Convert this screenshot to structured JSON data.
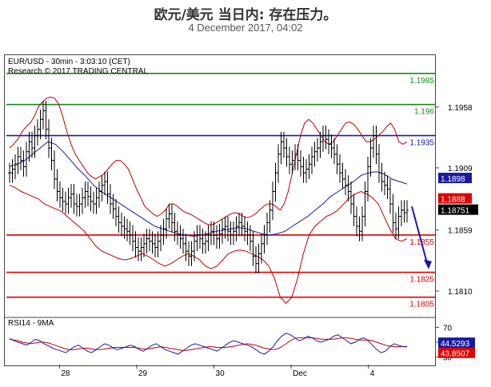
{
  "header": {
    "title": "欧元/美元 当日内: 存在压力。",
    "subtitle": "4 December 2017, 04:02"
  },
  "chart_info": {
    "symbol_line": "EUR/USD - 30min - 3:03:10 (CET)",
    "research_line": "Research © 2017 TRADING CENTRAL"
  },
  "chart_data": {
    "type": "line",
    "subtype": "ohlc-bars",
    "title": "",
    "y_range": [
      1.179,
      1.1999
    ],
    "y_ticks": [
      "1.1958",
      "1.1909",
      "1.1859",
      "1.1810"
    ],
    "x_ticks": [
      "28",
      "29",
      "30",
      "Dec",
      "4"
    ],
    "x_tick_positions_index": [
      31,
      79,
      127,
      175,
      223
    ],
    "close_series": [
      1.1905,
      1.1908,
      1.1912,
      1.1918,
      1.1915,
      1.191,
      1.1922,
      1.193,
      1.1925,
      1.1935,
      1.194,
      1.1948,
      1.1955,
      1.194,
      1.1925,
      1.1915,
      1.19,
      1.189,
      1.1885,
      1.1882,
      1.188,
      1.1885,
      1.1888,
      1.188,
      1.1878,
      1.188,
      1.1885,
      1.189,
      1.1886,
      1.1882,
      1.188,
      1.1885,
      1.189,
      1.1895,
      1.1898,
      1.1888,
      1.188,
      1.1876,
      1.187,
      1.1865,
      1.1862,
      1.186,
      1.1858,
      1.1855,
      1.185,
      1.1845,
      1.1842,
      1.1845,
      1.1848,
      1.1852,
      1.185,
      1.1848,
      1.1845,
      1.185,
      1.1855,
      1.186,
      1.1868,
      1.1872,
      1.1865,
      1.1858,
      1.1855,
      1.1852,
      1.1848,
      1.1842,
      1.1838,
      1.1842,
      1.185,
      1.1855,
      1.1852,
      1.1848,
      1.185,
      1.1855,
      1.1858,
      1.1855,
      1.1852,
      1.1856,
      1.186,
      1.1862,
      1.1858,
      1.1855,
      1.1858,
      1.1862,
      1.1865,
      1.1862,
      1.1858,
      1.1855,
      1.185,
      1.1838,
      1.1832,
      1.184,
      1.1848,
      1.1855,
      1.1865,
      1.1875,
      1.189,
      1.1905,
      1.192,
      1.193,
      1.1925,
      1.1918,
      1.1912,
      1.1915,
      1.192,
      1.1915,
      1.191,
      1.1905,
      1.1908,
      1.1912,
      1.1918,
      1.1922,
      1.1925,
      1.193,
      1.1935,
      1.1932,
      1.1928,
      1.1925,
      1.192,
      1.1912,
      1.1905,
      1.19,
      1.1895,
      1.189,
      1.188,
      1.187,
      1.1862,
      1.1858,
      1.187,
      1.189,
      1.191,
      1.1925,
      1.1935,
      1.192,
      1.1905,
      1.1898,
      1.1895,
      1.1892,
      1.188,
      1.1865,
      1.186,
      1.187,
      1.1875,
      1.1873,
      1.1875
    ],
    "bollinger_upper": [
      1.1925,
      1.1928,
      1.1932,
      1.1938,
      1.1942,
      1.1945,
      1.195,
      1.1958,
      1.1962,
      1.1965,
      1.1966,
      1.1965,
      1.196,
      1.195,
      1.1938,
      1.1928,
      1.192,
      1.1915,
      1.191,
      1.1905,
      1.1902,
      1.19,
      1.1902,
      1.1904,
      1.1908,
      1.1912,
      1.1915,
      1.1915,
      1.1912,
      1.1908,
      1.19,
      1.1892,
      1.1885,
      1.1878,
      1.1875,
      1.1872,
      1.187,
      1.1872,
      1.1875,
      1.188,
      1.188,
      1.1878,
      1.1875,
      1.1873,
      1.1872,
      1.187,
      1.1868,
      1.1866,
      1.1864,
      1.1863,
      1.1864,
      1.1866,
      1.1868,
      1.187,
      1.1872,
      1.1873,
      1.1872,
      1.187,
      1.1869,
      1.187,
      1.1872,
      1.1875,
      1.1878,
      1.188,
      1.188,
      1.1878,
      1.1875,
      1.188,
      1.189,
      1.1905,
      1.192,
      1.1935,
      1.1945,
      1.1948,
      1.1945,
      1.194,
      1.1935,
      1.193,
      1.1928,
      1.193,
      1.1935,
      1.194,
      1.1945,
      1.1946,
      1.1944,
      1.194,
      1.1935,
      1.193,
      1.193,
      1.1932,
      1.1935,
      1.1938,
      1.1942,
      1.1945,
      1.194,
      1.193,
      1.1928,
      1.193
    ],
    "bollinger_lower": [
      1.1895,
      1.1893,
      1.189,
      1.1888,
      1.1886,
      1.1884,
      1.188,
      1.1878,
      1.1876,
      1.1874,
      1.187,
      1.1866,
      1.1862,
      1.1858,
      1.1852,
      1.1846,
      1.1842,
      1.184,
      1.1838,
      1.1836,
      1.1835,
      1.1836,
      1.1838,
      1.184,
      1.1838,
      1.1835,
      1.1832,
      1.183,
      1.1832,
      1.1835,
      1.1838,
      1.184,
      1.1838,
      1.1835,
      1.183,
      1.1828,
      1.183,
      1.1835,
      1.184,
      1.1842,
      1.1843,
      1.1842,
      1.184,
      1.1838,
      1.1835,
      1.183,
      1.182,
      1.1805,
      1.18,
      1.1805,
      1.182,
      1.184,
      1.1855,
      1.1862,
      1.1866,
      1.187,
      1.1872,
      1.1875,
      1.188,
      1.1885,
      1.1888,
      1.189,
      1.1888,
      1.1885,
      1.188,
      1.187,
      1.186,
      1.1852,
      1.185,
      1.1852
    ],
    "moving_average": [
      1.191,
      1.1912,
      1.1915,
      1.192,
      1.1925,
      1.193,
      1.1928,
      1.1922,
      1.1915,
      1.1908,
      1.1902,
      1.1895,
      1.189,
      1.1886,
      1.1882,
      1.1878,
      1.1874,
      1.187,
      1.1866,
      1.1862,
      1.186,
      1.1858,
      1.1856,
      1.1855,
      1.1854,
      1.1855,
      1.1856,
      1.1858,
      1.1859,
      1.186,
      1.1861,
      1.186,
      1.1858,
      1.1856,
      1.1855,
      1.1856,
      1.1858,
      1.1862,
      1.1866,
      1.187,
      1.1875,
      1.188,
      1.1886,
      1.189,
      1.1894,
      1.1898,
      1.1903,
      1.1905,
      1.1906,
      1.1904,
      1.19,
      1.1898,
      1.1896
    ],
    "levels": [
      {
        "value": 1.1985,
        "label": "1.1985",
        "color": "#1a8a1a"
      },
      {
        "value": 1.196,
        "label": "1.196",
        "color": "#1a8a1a"
      },
      {
        "value": 1.1935,
        "label": "1.1935",
        "color": "#1a1aa0"
      },
      {
        "value": 1.1855,
        "label": "1.1855",
        "color": "#e00000"
      },
      {
        "value": 1.1825,
        "label": "1.1825",
        "color": "#e00000"
      },
      {
        "value": 1.1805,
        "label": "1.1805",
        "color": "#e00000"
      }
    ],
    "price_tags": [
      {
        "value": 1.1898,
        "label": "1.1898",
        "bg": "#1a1aa0",
        "fg": "#ffffff"
      },
      {
        "value": 1.1888,
        "label": "1.1888",
        "bg": "#e00000",
        "fg": "#ffffff"
      },
      {
        "value": 1.18751,
        "label": "1.18751",
        "bg": "#000000",
        "fg": "#ffffff"
      }
    ],
    "arrow": {
      "from_index": 235,
      "from_value": 1.1878,
      "to_index": 247,
      "to_value": 1.183,
      "color": "#1a1aa0"
    },
    "rsi": {
      "label": "RSI14 - 9MA",
      "y_range": [
        20,
        80
      ],
      "y_ticks": [
        "70",
        "50",
        "30"
      ],
      "rsi_values": [
        55,
        52,
        50,
        48,
        46,
        50,
        54,
        52,
        48,
        45,
        42,
        40,
        38,
        36,
        40,
        44,
        46,
        42,
        38,
        36,
        40,
        44,
        48,
        46,
        42,
        40,
        42,
        44,
        46,
        44,
        40,
        38,
        42,
        46,
        48,
        44,
        40,
        38,
        36,
        34,
        38,
        42,
        46,
        48,
        46,
        44,
        42,
        40,
        38,
        42,
        46,
        50,
        52,
        50,
        48,
        46,
        44,
        40,
        36,
        34,
        38,
        44,
        52,
        58,
        62,
        60,
        56,
        52,
        54,
        58,
        56,
        52,
        50,
        52,
        54,
        58,
        60,
        56,
        52,
        48,
        50,
        54,
        56,
        52,
        46,
        40,
        36,
        38,
        44,
        48,
        46,
        44,
        44.53
      ],
      "ma_values": [
        54,
        53,
        52,
        50,
        49,
        48,
        49,
        50,
        50,
        49,
        47,
        45,
        43,
        41,
        40,
        40,
        41,
        42,
        42,
        41,
        40,
        40,
        41,
        42,
        43,
        43,
        43,
        43,
        43,
        43,
        42,
        41,
        41,
        42,
        43,
        44,
        43,
        42,
        41,
        40,
        39,
        39,
        40,
        41,
        42,
        43,
        44,
        44,
        43,
        43,
        43,
        44,
        45,
        46,
        47,
        48,
        47,
        46,
        44,
        42,
        41,
        40,
        41,
        44,
        48,
        52,
        55,
        56,
        56,
        56,
        56,
        55,
        54,
        54,
        54,
        54,
        55,
        56,
        56,
        55,
        54,
        53,
        53,
        53,
        52,
        50,
        48,
        46,
        45,
        44,
        44,
        44,
        43.85
      ],
      "tags": [
        {
          "value": 44.5293,
          "label": "44.5293",
          "bg": "#1a1aa0",
          "fg": "#ffffff"
        },
        {
          "value": 43.8507,
          "label": "43.8507",
          "bg": "#e00000",
          "fg": "#ffffff"
        }
      ]
    }
  }
}
